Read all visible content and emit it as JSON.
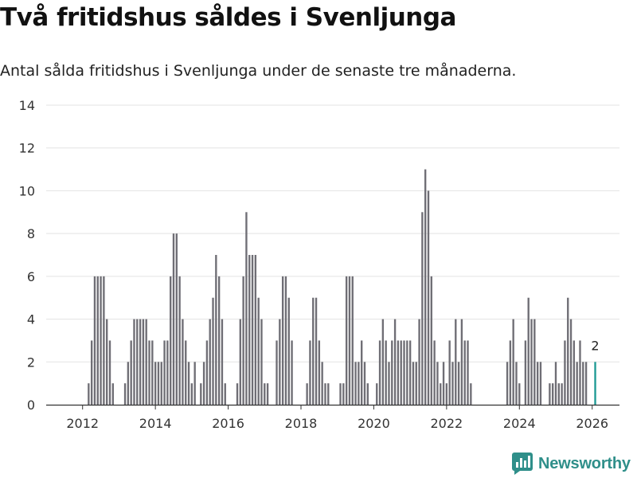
{
  "header": {
    "title": "Två fritidshus såldes i Svenljunga",
    "subtitle": "Antal sålda fritidshus i Svenljunga under de senaste tre månaderna."
  },
  "brand": {
    "name": "Newsworthy",
    "color": "#2f8f8a"
  },
  "colors": {
    "bar": "#6f6e75",
    "highlight": "#1f9a94",
    "grid": "#e3e3e3",
    "axis": "#333333"
  },
  "chart_data": {
    "type": "bar",
    "title": "Två fritidshus såldes i Svenljunga",
    "subtitle": "Antal sålda fritidshus i Svenljunga under de senaste tre månaderna.",
    "xlabel": "",
    "ylabel": "",
    "ylim": [
      0,
      14
    ],
    "xlim": [
      "2011-01",
      "2026-10"
    ],
    "yticks": [
      "0",
      "2",
      "4",
      "6",
      "8",
      "10",
      "12",
      "14"
    ],
    "xticks": [
      {
        "label": "2012",
        "value": "2012-01"
      },
      {
        "label": "2014",
        "value": "2014-01"
      },
      {
        "label": "2016",
        "value": "2016-01"
      },
      {
        "label": "2018",
        "value": "2018-01"
      },
      {
        "label": "2020",
        "value": "2020-01"
      },
      {
        "label": "2022",
        "value": "2022-01"
      },
      {
        "label": "2024",
        "value": "2024-01"
      },
      {
        "label": "2026",
        "value": "2026-01"
      }
    ],
    "grid": true,
    "series": [
      {
        "points": [
          [
            "2012-03",
            1
          ],
          [
            "2012-04",
            3
          ],
          [
            "2012-05",
            6
          ],
          [
            "2012-06",
            6
          ],
          [
            "2012-07",
            6
          ],
          [
            "2012-08",
            6
          ],
          [
            "2012-09",
            4
          ],
          [
            "2012-10",
            3
          ],
          [
            "2012-11",
            1
          ],
          [
            "2013-03",
            1
          ],
          [
            "2013-04",
            2
          ],
          [
            "2013-05",
            3
          ],
          [
            "2013-06",
            4
          ],
          [
            "2013-07",
            4
          ],
          [
            "2013-08",
            4
          ],
          [
            "2013-09",
            4
          ],
          [
            "2013-10",
            4
          ],
          [
            "2013-11",
            3
          ],
          [
            "2013-12",
            3
          ],
          [
            "2014-01",
            2
          ],
          [
            "2014-02",
            2
          ],
          [
            "2014-03",
            2
          ],
          [
            "2014-04",
            3
          ],
          [
            "2014-05",
            3
          ],
          [
            "2014-06",
            6
          ],
          [
            "2014-07",
            8
          ],
          [
            "2014-08",
            8
          ],
          [
            "2014-09",
            6
          ],
          [
            "2014-10",
            4
          ],
          [
            "2014-11",
            3
          ],
          [
            "2014-12",
            2
          ],
          [
            "2015-01",
            1
          ],
          [
            "2015-02",
            2
          ],
          [
            "2015-04",
            1
          ],
          [
            "2015-05",
            2
          ],
          [
            "2015-06",
            3
          ],
          [
            "2015-07",
            4
          ],
          [
            "2015-08",
            5
          ],
          [
            "2015-09",
            7
          ],
          [
            "2015-10",
            6
          ],
          [
            "2015-11",
            4
          ],
          [
            "2015-12",
            1
          ],
          [
            "2016-04",
            1
          ],
          [
            "2016-05",
            4
          ],
          [
            "2016-06",
            6
          ],
          [
            "2016-07",
            9
          ],
          [
            "2016-08",
            7
          ],
          [
            "2016-09",
            7
          ],
          [
            "2016-10",
            7
          ],
          [
            "2016-11",
            5
          ],
          [
            "2016-12",
            4
          ],
          [
            "2017-01",
            1
          ],
          [
            "2017-02",
            1
          ],
          [
            "2017-05",
            3
          ],
          [
            "2017-06",
            4
          ],
          [
            "2017-07",
            6
          ],
          [
            "2017-08",
            6
          ],
          [
            "2017-09",
            5
          ],
          [
            "2017-10",
            3
          ],
          [
            "2018-03",
            1
          ],
          [
            "2018-04",
            3
          ],
          [
            "2018-05",
            5
          ],
          [
            "2018-06",
            5
          ],
          [
            "2018-07",
            3
          ],
          [
            "2018-08",
            2
          ],
          [
            "2018-09",
            1
          ],
          [
            "2018-10",
            1
          ],
          [
            "2019-02",
            1
          ],
          [
            "2019-03",
            1
          ],
          [
            "2019-04",
            6
          ],
          [
            "2019-05",
            6
          ],
          [
            "2019-06",
            6
          ],
          [
            "2019-07",
            2
          ],
          [
            "2019-08",
            2
          ],
          [
            "2019-09",
            3
          ],
          [
            "2019-10",
            2
          ],
          [
            "2019-11",
            1
          ],
          [
            "2020-02",
            1
          ],
          [
            "2020-03",
            3
          ],
          [
            "2020-04",
            4
          ],
          [
            "2020-05",
            3
          ],
          [
            "2020-06",
            2
          ],
          [
            "2020-07",
            3
          ],
          [
            "2020-08",
            4
          ],
          [
            "2020-09",
            3
          ],
          [
            "2020-10",
            3
          ],
          [
            "2020-11",
            3
          ],
          [
            "2020-12",
            3
          ],
          [
            "2021-01",
            3
          ],
          [
            "2021-02",
            2
          ],
          [
            "2021-03",
            2
          ],
          [
            "2021-04",
            4
          ],
          [
            "2021-05",
            9
          ],
          [
            "2021-06",
            11
          ],
          [
            "2021-07",
            10
          ],
          [
            "2021-08",
            6
          ],
          [
            "2021-09",
            3
          ],
          [
            "2021-10",
            2
          ],
          [
            "2021-11",
            1
          ],
          [
            "2021-12",
            2
          ],
          [
            "2022-01",
            1
          ],
          [
            "2022-02",
            3
          ],
          [
            "2022-03",
            2
          ],
          [
            "2022-04",
            4
          ],
          [
            "2022-05",
            2
          ],
          [
            "2022-06",
            4
          ],
          [
            "2022-07",
            3
          ],
          [
            "2022-08",
            3
          ],
          [
            "2022-09",
            1
          ],
          [
            "2023-09",
            2
          ],
          [
            "2023-10",
            3
          ],
          [
            "2023-11",
            4
          ],
          [
            "2023-12",
            2
          ],
          [
            "2024-01",
            1
          ],
          [
            "2024-03",
            3
          ],
          [
            "2024-04",
            5
          ],
          [
            "2024-05",
            4
          ],
          [
            "2024-06",
            4
          ],
          [
            "2024-07",
            2
          ],
          [
            "2024-08",
            2
          ],
          [
            "2024-11",
            1
          ],
          [
            "2024-12",
            1
          ],
          [
            "2025-01",
            2
          ],
          [
            "2025-02",
            1
          ],
          [
            "2025-03",
            1
          ],
          [
            "2025-04",
            3
          ],
          [
            "2025-05",
            5
          ],
          [
            "2025-06",
            4
          ],
          [
            "2025-07",
            3
          ],
          [
            "2025-08",
            2
          ],
          [
            "2025-09",
            3
          ],
          [
            "2025-10",
            2
          ],
          [
            "2025-11",
            2
          ],
          [
            "2026-02",
            2
          ]
        ]
      }
    ],
    "highlight": {
      "x": "2026-02",
      "value": 2,
      "label": "2"
    }
  }
}
